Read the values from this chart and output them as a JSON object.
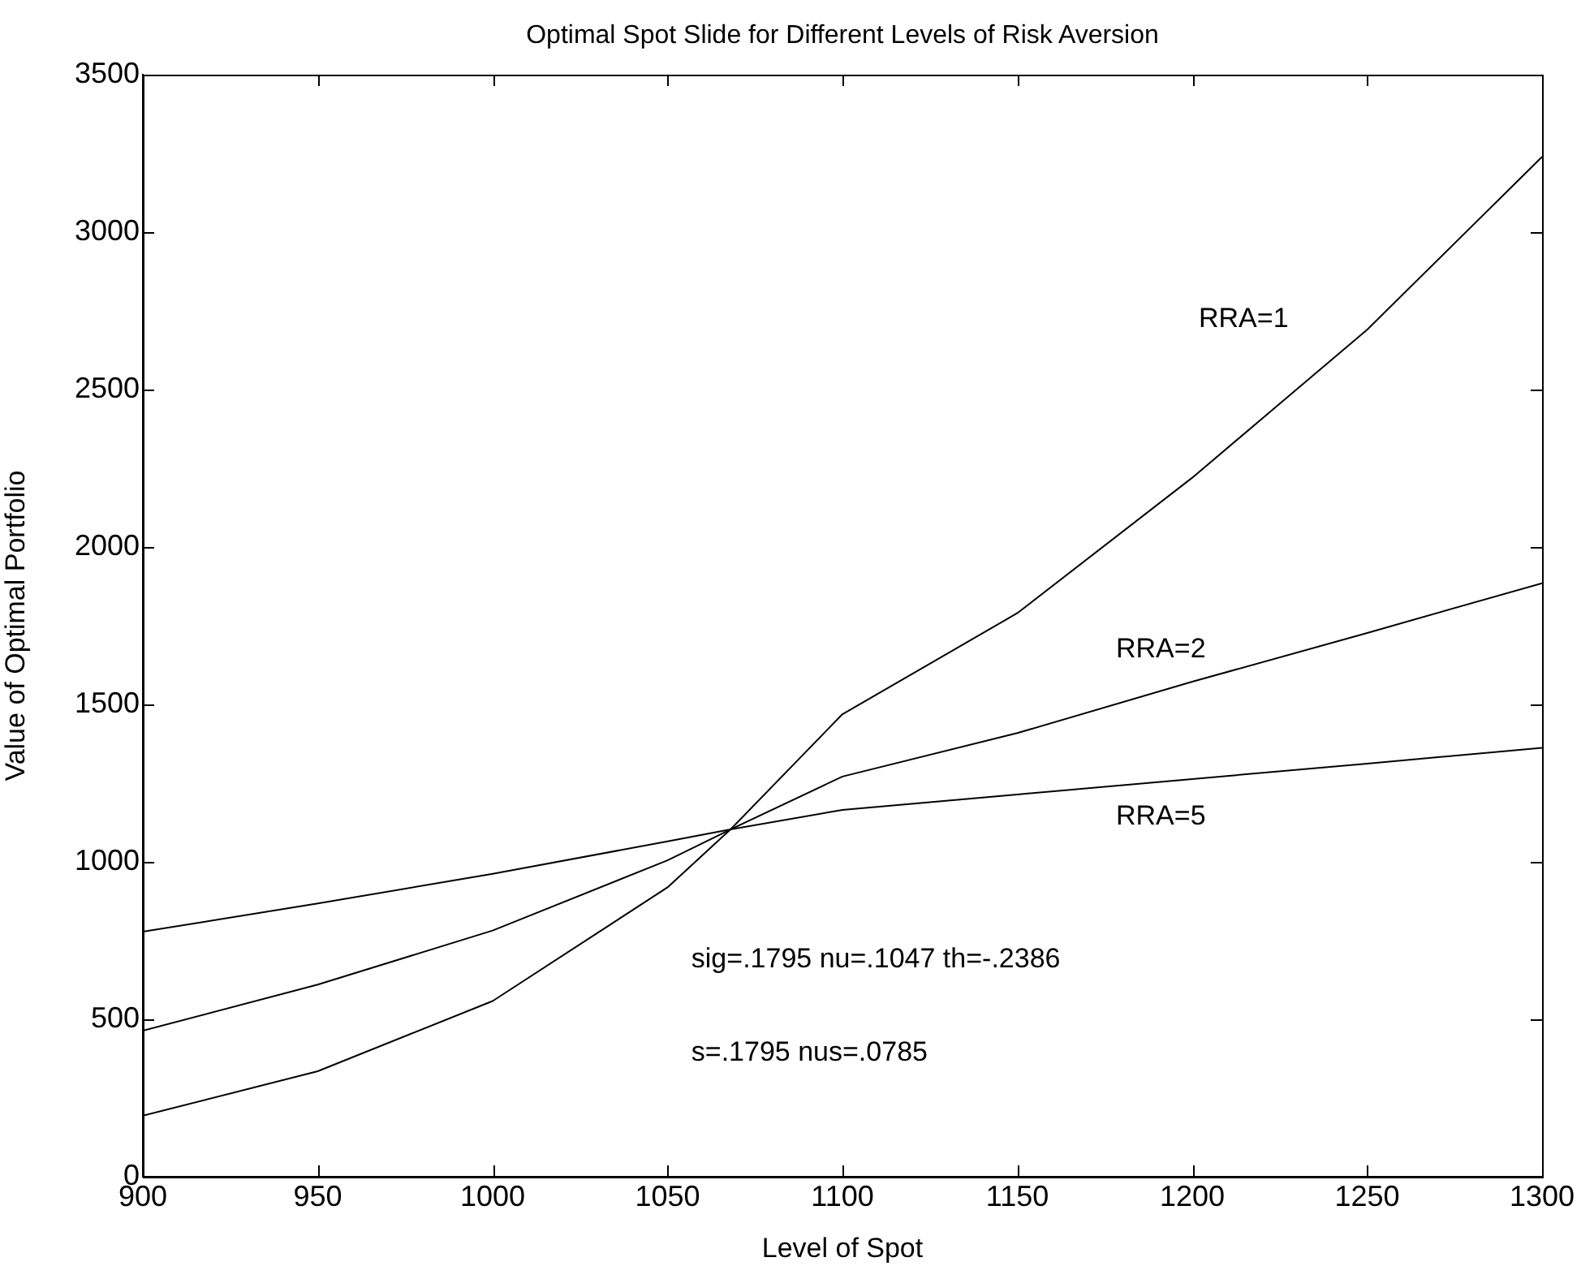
{
  "chart_data": {
    "type": "line",
    "title": "Optimal Spot Slide for Different Levels of Risk Aversion",
    "xlabel": "Level of Spot",
    "ylabel": "Value of Optimal Portfolio",
    "x": [
      900,
      950,
      1000,
      1050,
      1068,
      1100,
      1150,
      1200,
      1250,
      1300
    ],
    "series": [
      {
        "name": "RRA=1",
        "color": "#000000",
        "values": [
          194,
          335,
          558,
          919,
          1103,
          1469,
          1790,
          2220,
          2690,
          3239
        ]
      },
      {
        "name": "RRA=2",
        "color": "#000000",
        "values": [
          464,
          610,
          782,
          1005,
          1103,
          1271,
          1409,
          1572,
          1727,
          1885
        ]
      },
      {
        "name": "RRA=5",
        "color": "#000000",
        "values": [
          778,
          868,
          962,
          1065,
          1103,
          1165,
          1214,
          1263,
          1312,
          1362
        ]
      }
    ],
    "xlim": [
      900,
      1300
    ],
    "xticks": [
      900,
      950,
      1000,
      1050,
      1100,
      1150,
      1200,
      1250,
      1300
    ],
    "ylim": [
      0,
      3500
    ],
    "yticks": [
      0,
      500,
      1000,
      1500,
      2000,
      2500,
      3000,
      3500
    ],
    "grid": false,
    "legend": false,
    "marker": "none",
    "line_style": "solid",
    "annotations": [
      "sig=.1795 nu=.1047 th=-.2386",
      "s=.1795 nus=.0785"
    ]
  }
}
